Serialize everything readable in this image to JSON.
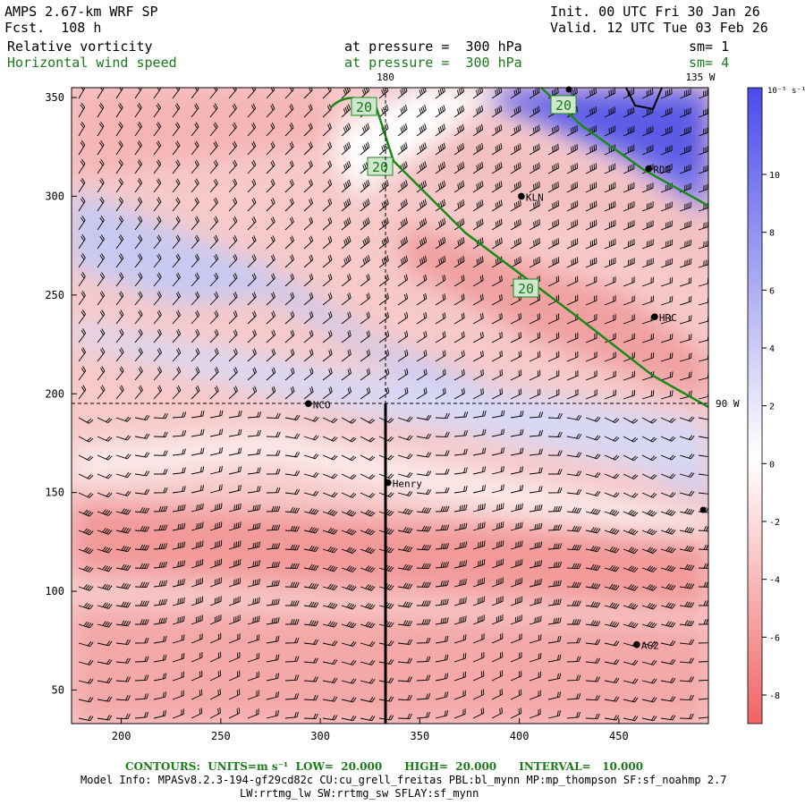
{
  "header": {
    "model_title": "AMPS 2.67-km WRF SP",
    "forecast": "Fcst.  108 h",
    "init": "Init. 00 UTC Fri 30 Jan 26",
    "valid": "Valid. 12 UTC Tue 03 Feb 26",
    "field1_name": "Relative vorticity",
    "field1_level": "at pressure =  300 hPa",
    "field1_smooth": "sm= 1",
    "field2_name": "Horizontal wind speed",
    "field2_level": "at pressure =  300 hPa",
    "field2_smooth": "sm= 4"
  },
  "map": {
    "x_axis": {
      "range": [
        175,
        495
      ],
      "ticks": [
        "200",
        "250",
        "300",
        "350",
        "400",
        "450"
      ]
    },
    "y_axis": {
      "range": [
        33,
        355
      ],
      "ticks": [
        "350",
        "300",
        "250",
        "200",
        "150",
        "100",
        "50"
      ]
    },
    "longitude_labels": {
      "top": "180",
      "top_right": "135 W",
      "right": "90 W"
    },
    "contour_labels": [
      "20",
      "20",
      "20",
      "20"
    ],
    "contour_color": "#1a8a1a",
    "stations": [
      {
        "name": "KLN",
        "x": 401,
        "y": 300
      },
      {
        "name": "RDG",
        "x": 465,
        "y": 314
      },
      {
        "name": "HRC",
        "x": 468,
        "y": 239
      },
      {
        "name": "NCO",
        "x": 294,
        "y": 195
      },
      {
        "name": "Henry",
        "x": 334,
        "y": 155
      },
      {
        "name": "AG2",
        "x": 459,
        "y": 73
      }
    ],
    "cross_section_x": 334
  },
  "colorbar": {
    "unit_label": "10⁻⁵ s⁻¹",
    "ticks": [
      "10",
      "8",
      "6",
      "4",
      "2",
      "0",
      "-2",
      "-4",
      "-6",
      "-8"
    ],
    "positive_color": "#4b4bea",
    "negative_color": "#f06464"
  },
  "footer": {
    "contours": "CONTOURS:  UNITS=m s⁻¹  LOW=  20.000      HIGH=  20.000      INTERVAL=   10.000",
    "model_info": "Model Info: MPASv8.2.3-194-gf29cd82c CU:cu_grell_freitas PBL:bl_mynn MP:mp_thompson SF:sf_noahmp 2.7",
    "model_info2": "LW:rrtmg_lw SW:rrtmg_sw SFLAY:sf_mynn"
  }
}
